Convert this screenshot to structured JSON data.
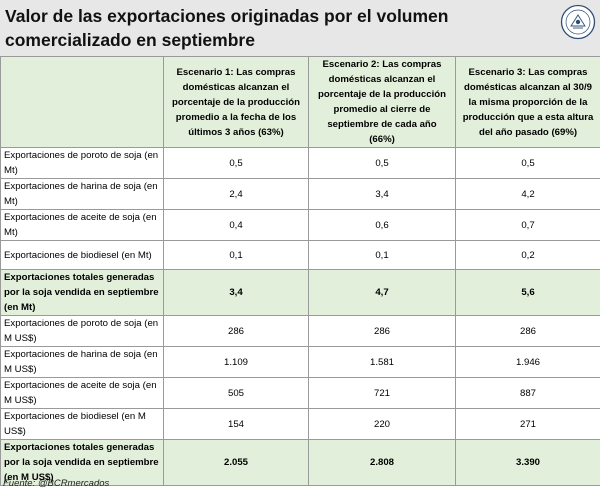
{
  "title": "Valor de las exportaciones originadas por el volumen comercializado en septiembre",
  "seal": {
    "icon": "bcr-seal-logo",
    "text": "BOLSA DE COMERCIO DE ROSARIO"
  },
  "table": {
    "headers": [
      "",
      "Escenario 1: Las compras domésticas alcanzan el porcentaje de la producción promedio a la fecha de los últimos 3 años (63%)",
      "Escenario 2: Las compras domésticas alcanzan el porcentaje de la producción promedio al cierre de septiembre de cada año (66%)",
      "Escenario 3: Las compras domésticas alcanzan al 30/9 la misma proporción de la producción que a esta altura del año pasado (69%)"
    ],
    "rows": [
      {
        "label": "Exportaciones de poroto de soja (en Mt)",
        "values": [
          "0,5",
          "0,5",
          "0,5"
        ],
        "total": false
      },
      {
        "label": "Exportaciones de harina de soja (en Mt)",
        "values": [
          "2,4",
          "3,4",
          "4,2"
        ],
        "total": false
      },
      {
        "label": "Exportaciones de aceite de soja (en Mt)",
        "values": [
          "0,4",
          "0,6",
          "0,7"
        ],
        "total": false
      },
      {
        "label": "Exportaciones de biodiesel (en Mt)",
        "values": [
          "0,1",
          "0,1",
          "0,2"
        ],
        "total": false
      },
      {
        "label": "Exportaciones totales generadas por la soja vendida en septiembre (en Mt)",
        "values": [
          "3,4",
          "4,7",
          "5,6"
        ],
        "total": true
      },
      {
        "label": "Exportaciones de poroto de soja (en M US$)",
        "values": [
          "286",
          "286",
          "286"
        ],
        "total": false
      },
      {
        "label": "Exportaciones de harina de soja (en M US$)",
        "values": [
          "1.109",
          "1.581",
          "1.946"
        ],
        "total": false
      },
      {
        "label": "Exportaciones de aceite de soja (en M US$)",
        "values": [
          "505",
          "721",
          "887"
        ],
        "total": false
      },
      {
        "label": "Exportaciones de biodiesel (en M US$)",
        "values": [
          "154",
          "220",
          "271"
        ],
        "total": false
      },
      {
        "label": "Exportaciones totales generadas por la soja vendida en septiembre (en M US$)",
        "values": [
          "2.055",
          "2.808",
          "3.390"
        ],
        "total": true
      }
    ]
  },
  "source": "Fuente: @BCRmercados"
}
